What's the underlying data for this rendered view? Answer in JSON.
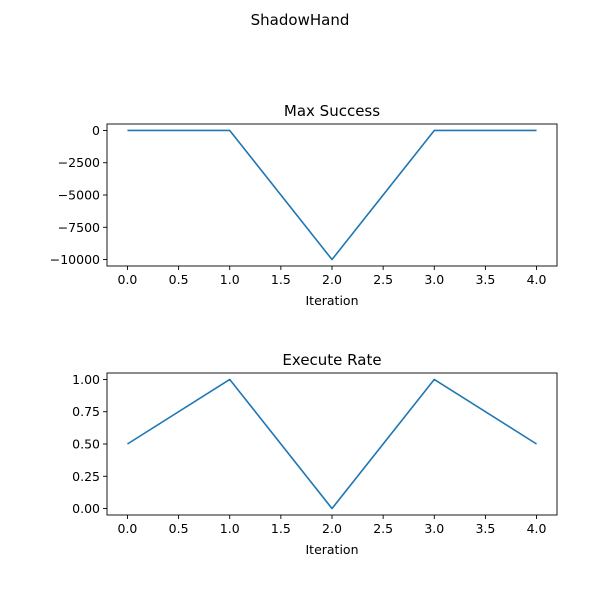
{
  "suptitle": "ShadowHand",
  "chart_data": [
    {
      "type": "line",
      "title": "Max Success",
      "xlabel": "Iteration",
      "ylabel": "",
      "x": [
        0,
        1,
        2,
        3,
        4
      ],
      "series": [
        {
          "values": [
            0,
            0,
            -10000,
            0,
            0
          ],
          "color": "#1f77b4"
        }
      ],
      "xlim": [
        -0.2,
        4.2
      ],
      "ylim": [
        -10500,
        500
      ],
      "xticks": [
        0.0,
        0.5,
        1.0,
        1.5,
        2.0,
        2.5,
        3.0,
        3.5,
        4.0
      ],
      "xtick_labels": [
        "0.0",
        "0.5",
        "1.0",
        "1.5",
        "2.0",
        "2.5",
        "3.0",
        "3.5",
        "4.0"
      ],
      "yticks": [
        0,
        -2500,
        -5000,
        -7500,
        -10000
      ],
      "ytick_labels": [
        "0",
        "−2500",
        "−5000",
        "−7500",
        "−10000"
      ],
      "grid": false,
      "legend": false
    },
    {
      "type": "line",
      "title": "Execute Rate",
      "xlabel": "Iteration",
      "ylabel": "",
      "x": [
        0,
        1,
        2,
        3,
        4
      ],
      "series": [
        {
          "values": [
            0.5,
            1.0,
            0.0,
            1.0,
            0.5
          ],
          "color": "#1f77b4"
        }
      ],
      "xlim": [
        -0.2,
        4.2
      ],
      "ylim": [
        -0.05,
        1.05
      ],
      "xticks": [
        0.0,
        0.5,
        1.0,
        1.5,
        2.0,
        2.5,
        3.0,
        3.5,
        4.0
      ],
      "xtick_labels": [
        "0.0",
        "0.5",
        "1.0",
        "1.5",
        "2.0",
        "2.5",
        "3.0",
        "3.5",
        "4.0"
      ],
      "yticks": [
        1.0,
        0.75,
        0.5,
        0.25,
        0.0
      ],
      "ytick_labels": [
        "1.00",
        "0.75",
        "0.50",
        "0.25",
        "0.00"
      ],
      "grid": false,
      "legend": false
    }
  ]
}
